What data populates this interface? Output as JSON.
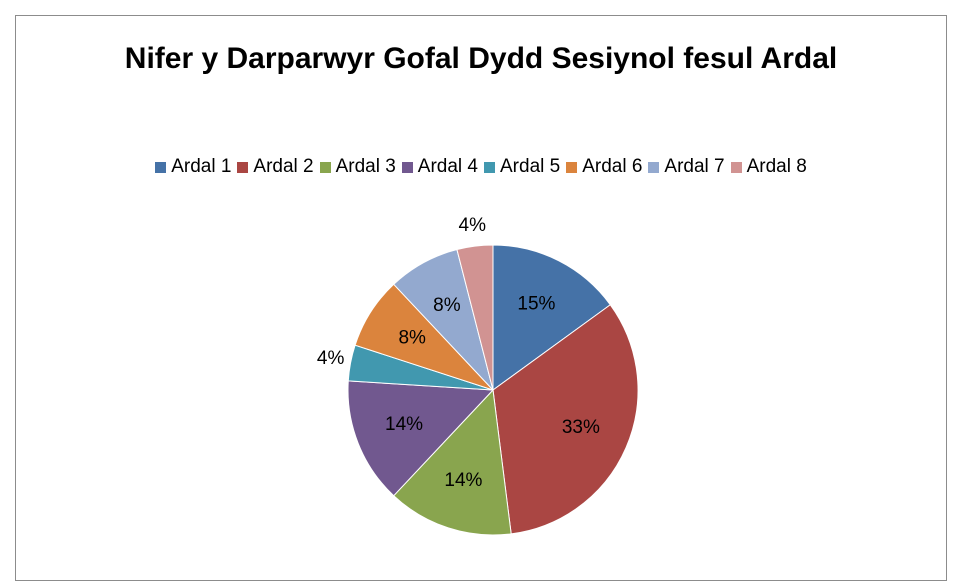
{
  "chart_data": {
    "type": "pie",
    "title": "Nifer y Darparwyr Gofal Dydd Sesiynol fesul Ardal",
    "categories": [
      "Ardal 1",
      "Ardal 2",
      "Ardal 3",
      "Ardal 4",
      "Ardal 5",
      "Ardal 6",
      "Ardal 7",
      "Ardal 8"
    ],
    "values": [
      15,
      33,
      14,
      14,
      4,
      8,
      8,
      4
    ],
    "value_labels": [
      "15%",
      "33%",
      "14%",
      "14%",
      "4%",
      "8%",
      "8%",
      "4%"
    ],
    "colors": [
      "#4572a7",
      "#aa4643",
      "#89a54e",
      "#71588f",
      "#4198af",
      "#db843d",
      "#93a9cf",
      "#d19392"
    ],
    "legend": "top"
  }
}
